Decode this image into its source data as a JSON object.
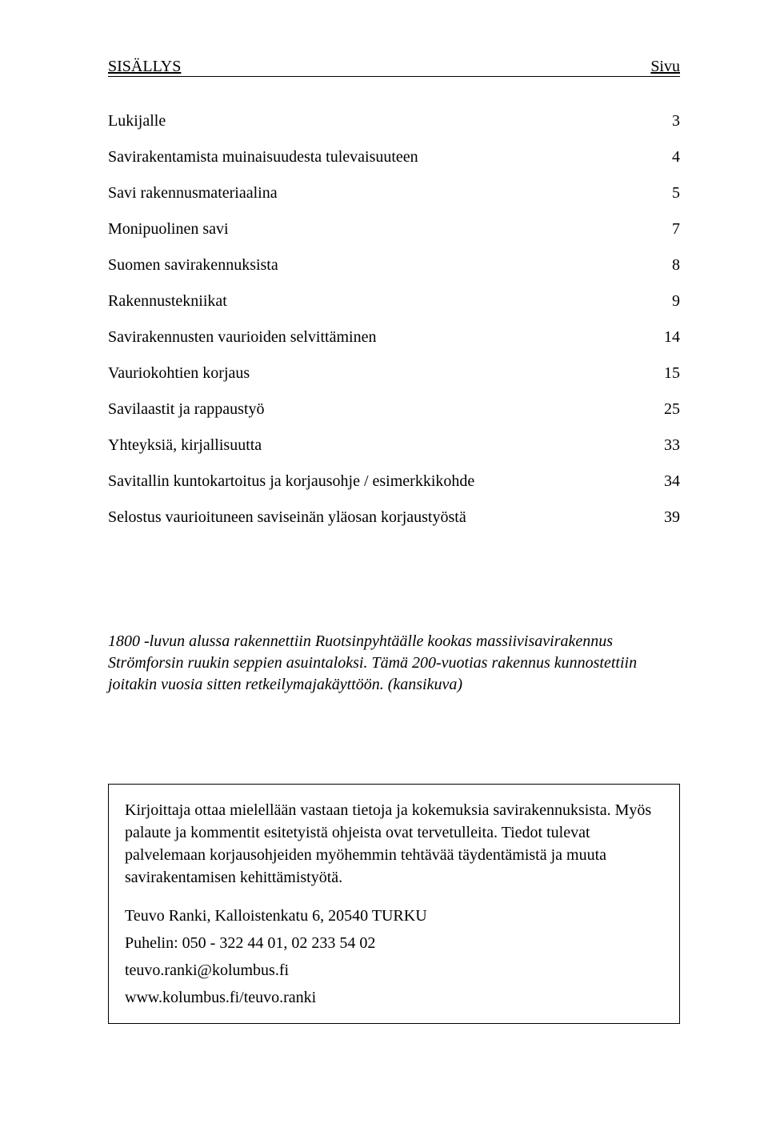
{
  "header": {
    "left": "SISÄLLYS",
    "right": "Sivu"
  },
  "toc": [
    {
      "title": "Lukijalle",
      "page": "3"
    },
    {
      "title": "Savirakentamista muinaisuudesta tulevaisuuteen",
      "page": "4"
    },
    {
      "title": "Savi rakennusmateriaalina",
      "page": "5"
    },
    {
      "title": "Monipuolinen savi",
      "page": "7"
    },
    {
      "title": "Suomen savirakennuksista",
      "page": "8"
    },
    {
      "title": "Rakennustekniikat",
      "page": "9"
    },
    {
      "title": "Savirakennusten vaurioiden selvittäminen",
      "page": "14"
    },
    {
      "title": "Vauriokohtien korjaus",
      "page": "15"
    },
    {
      "title": "Savilaastit ja rappaustyö",
      "page": "25"
    },
    {
      "title": "Yhteyksiä, kirjallisuutta",
      "page": "33"
    },
    {
      "title": "Savitallin kuntokartoitus ja korjausohje / esimerkkikohde",
      "page": "34"
    },
    {
      "title": "Selostus vaurioituneen saviseinän yläosan korjaustyöstä",
      "page": "39"
    }
  ],
  "caption": "1800 -luvun alussa rakennettiin Ruotsinpyhtäälle kookas massiivisavirakennus Strömforsin ruukin seppien asuintaloksi. Tämä 200-vuotias rakennus kunnostettiin joitakin vuosia sitten retkeilymajakäyttöön. (kansikuva)",
  "infobox": {
    "para1": "Kirjoittaja ottaa mielellään vastaan tietoja ja kokemuksia savirakennuksista. Myös palaute ja kommentit esitetyistä ohjeista ovat tervetulleita. Tiedot tulevat palvelemaan korjausohjeiden myöhemmin tehtävää täydentämistä ja muuta savirakentamisen kehittämistyötä.",
    "contact_name": "Teuvo Ranki, Kalloistenkatu 6, 20540 TURKU",
    "contact_phone": "Puhelin: 050 - 322 44 01, 02 233 54 02",
    "contact_email": "teuvo.ranki@kolumbus.fi",
    "contact_web": "www.kolumbus.fi/teuvo.ranki"
  }
}
